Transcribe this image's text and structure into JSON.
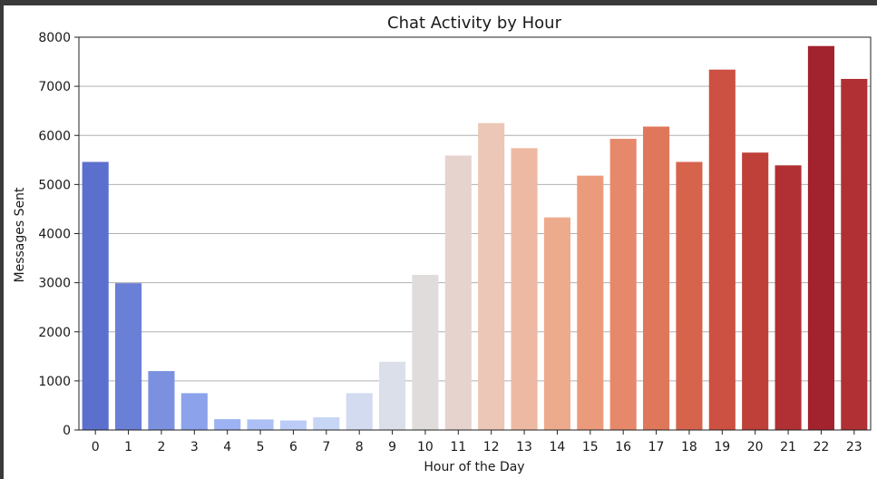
{
  "chart_data": {
    "type": "bar",
    "title": "Chat Activity by Hour",
    "xlabel": "Hour of the Day",
    "ylabel": "Messages Sent",
    "categories": [
      "0",
      "1",
      "2",
      "3",
      "4",
      "5",
      "6",
      "7",
      "8",
      "9",
      "10",
      "11",
      "12",
      "13",
      "14",
      "15",
      "16",
      "17",
      "18",
      "19",
      "20",
      "21",
      "22",
      "23"
    ],
    "values": [
      5460,
      2990,
      1200,
      750,
      220,
      215,
      195,
      260,
      750,
      1390,
      3160,
      5590,
      6250,
      5740,
      4330,
      5180,
      5930,
      6180,
      5460,
      7340,
      5650,
      5390,
      7820,
      7150
    ],
    "colors": [
      "#5b6fcc",
      "#6a7fd6",
      "#7b91e0",
      "#8ca2ea",
      "#9cb2f2",
      "#acc0f5",
      "#bbcdf6",
      "#c7d6f4",
      "#d2dbef",
      "#dadfe9",
      "#e0dcdc",
      "#e7d3cd",
      "#ecc6b6",
      "#eeb9a2",
      "#edab8d",
      "#eb9b7b",
      "#e6896a",
      "#df775b",
      "#d6644d",
      "#cc5142",
      "#bf3f39",
      "#b03033",
      "#a2222e",
      "#b03034"
    ],
    "ylim": [
      0,
      8000
    ],
    "yticks": [
      0,
      1000,
      2000,
      3000,
      4000,
      5000,
      6000,
      7000,
      8000
    ],
    "grid": "y"
  }
}
